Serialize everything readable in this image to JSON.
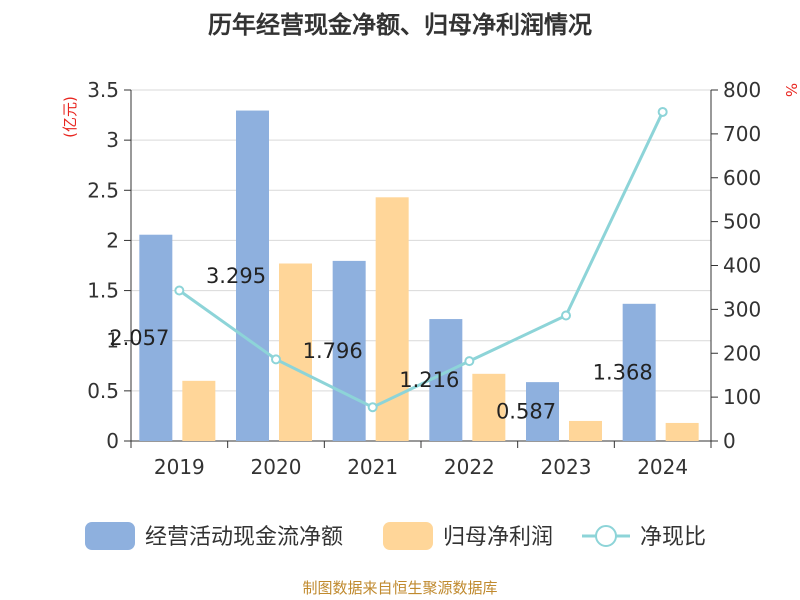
{
  "chart_data": {
    "type": "bar",
    "title": "历年经营现金净额、归母净利润情况",
    "categories": [
      "2019",
      "2020",
      "2021",
      "2022",
      "2023",
      "2024"
    ],
    "series": [
      {
        "name": "经营活动现金流净额",
        "type": "bar",
        "axis": "left",
        "color": "#8eb0de",
        "values": [
          2.057,
          3.295,
          1.796,
          1.216,
          0.587,
          1.368
        ],
        "labels": [
          "2.057",
          "3.295",
          "1.796",
          "1.216",
          "0.587",
          "1.368"
        ]
      },
      {
        "name": "归母净利润",
        "type": "bar",
        "axis": "left",
        "color": "#ffd699",
        "values": [
          0.6,
          1.77,
          2.43,
          0.67,
          0.2,
          0.18
        ]
      },
      {
        "name": "净现比",
        "type": "line",
        "axis": "right",
        "color": "#8dd4d8",
        "values": [
          343,
          186,
          77,
          182,
          286,
          750
        ]
      }
    ],
    "left_axis": {
      "label": "(亿元)",
      "min": 0,
      "max": 3.5,
      "ticks": [
        "0",
        "0.5",
        "1",
        "1.5",
        "2",
        "2.5",
        "3",
        "3.5"
      ]
    },
    "right_axis": {
      "label": "%",
      "min": 0,
      "max": 800,
      "ticks": [
        "0",
        "100",
        "200",
        "300",
        "400",
        "500",
        "600",
        "700",
        "800"
      ]
    },
    "legend_position": "bottom",
    "grid": true
  },
  "source_note": "制图数据来自恒生聚源数据库",
  "colors": {
    "axis_label_red": "#e8251f",
    "source_gold": "#c08a2e",
    "grid": "#d9d9d9",
    "axis": "#333333"
  }
}
